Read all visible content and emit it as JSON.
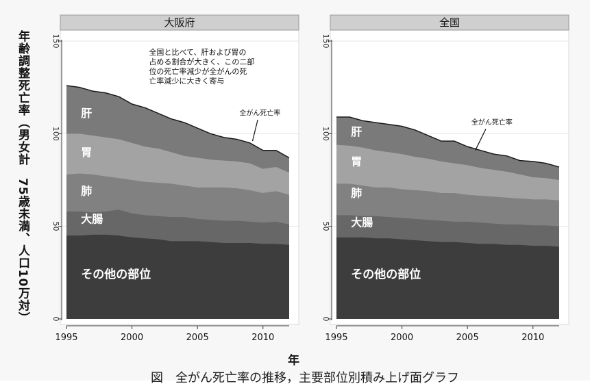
{
  "chart_data": {
    "type": "area",
    "ylabel": "年齢調整死亡率（男女計　75歳未満、人口10万対）",
    "xlabel": "年",
    "caption": "図　全がん死亡率の推移，主要部位別積み上げ面グラフ",
    "x": [
      1995,
      1996,
      1997,
      1998,
      1999,
      2000,
      2001,
      2002,
      2003,
      2004,
      2005,
      2006,
      2007,
      2008,
      2009,
      2010,
      2011,
      2012
    ],
    "xticks": [
      1995,
      2000,
      2005,
      2010
    ],
    "ylim": [
      0,
      150
    ],
    "yticks": [
      0,
      50,
      100,
      150
    ],
    "panels": [
      {
        "title": "大阪府",
        "annotation": "全国と比べて、肝および胃の占める割合が大きく、この二部位の死亡率減少が全がんの死亡率減少に大きく寄与",
        "total_label": "全がん死亡率",
        "layer_labels": [
          "その他の部位",
          "大腸",
          "肺",
          "胃",
          "肝"
        ],
        "series": [
          {
            "name": "その他の部位",
            "values": [
              45,
              45,
              45.5,
              45.5,
              45,
              44,
              43.5,
              43,
              42,
              42,
              42,
              41.5,
              41,
              41,
              41,
              40.5,
              40.5,
              40
            ]
          },
          {
            "name": "大腸",
            "values": [
              58,
              58,
              57.5,
              58,
              59,
              57,
              56,
              55.5,
              55,
              55,
              54,
              53.5,
              53,
              53,
              52.5,
              52,
              52.5,
              51
            ]
          },
          {
            "name": "肺",
            "values": [
              78,
              78.5,
              78,
              77,
              76,
              75,
              74,
              73.5,
              73,
              72,
              71,
              71,
              71,
              70.5,
              69.5,
              68,
              69,
              67
            ]
          },
          {
            "name": "胃",
            "values": [
              100,
              100,
              99,
              98,
              97,
              95,
              93,
              92,
              90,
              88,
              87,
              86,
              85.5,
              85,
              84,
              81,
              82,
              79
            ]
          },
          {
            "name": "肝",
            "values": [
              126,
              125,
              123,
              122,
              120,
              116,
              114,
              111,
              108,
              106,
              103,
              100,
              98,
              97,
              95,
              91,
              91,
              87
            ]
          }
        ]
      },
      {
        "title": "全国",
        "annotation": "",
        "total_label": "全がん死亡率",
        "layer_labels": [
          "その他の部位",
          "大腸",
          "肺",
          "胃",
          "肝"
        ],
        "series": [
          {
            "name": "その他の部位",
            "values": [
              44,
              44,
              44,
              43.5,
              43.5,
              43,
              42.5,
              42,
              41.5,
              41.5,
              41,
              40.5,
              40.5,
              40,
              40,
              39.5,
              39.5,
              39
            ]
          },
          {
            "name": "大腸",
            "values": [
              56,
              56,
              55.5,
              55.5,
              55,
              54.5,
              54,
              53.5,
              53,
              52.5,
              52.5,
              52,
              51.5,
              51,
              51,
              50.5,
              50.5,
              50
            ]
          },
          {
            "name": "肺",
            "values": [
              73,
              73,
              72,
              71,
              71,
              70,
              69.5,
              69,
              68,
              68,
              67,
              66.5,
              66,
              65.5,
              65,
              64.5,
              64.5,
              64
            ]
          },
          {
            "name": "胃",
            "values": [
              94,
              93.5,
              92.5,
              91,
              90,
              89,
              87.5,
              86.5,
              85,
              84,
              83,
              81.5,
              80.5,
              79.5,
              78,
              76.5,
              76,
              75
            ]
          },
          {
            "name": "肝",
            "values": [
              109,
              109,
              107,
              106,
              105,
              104,
              102,
              99,
              96,
              96,
              93,
              91,
              89,
              88,
              85.5,
              85,
              84,
              82
            ]
          }
        ]
      }
    ],
    "colors": [
      "#3d3d3d",
      "#676767",
      "#818181",
      "#a3a3a3",
      "#7a7a7a"
    ]
  }
}
